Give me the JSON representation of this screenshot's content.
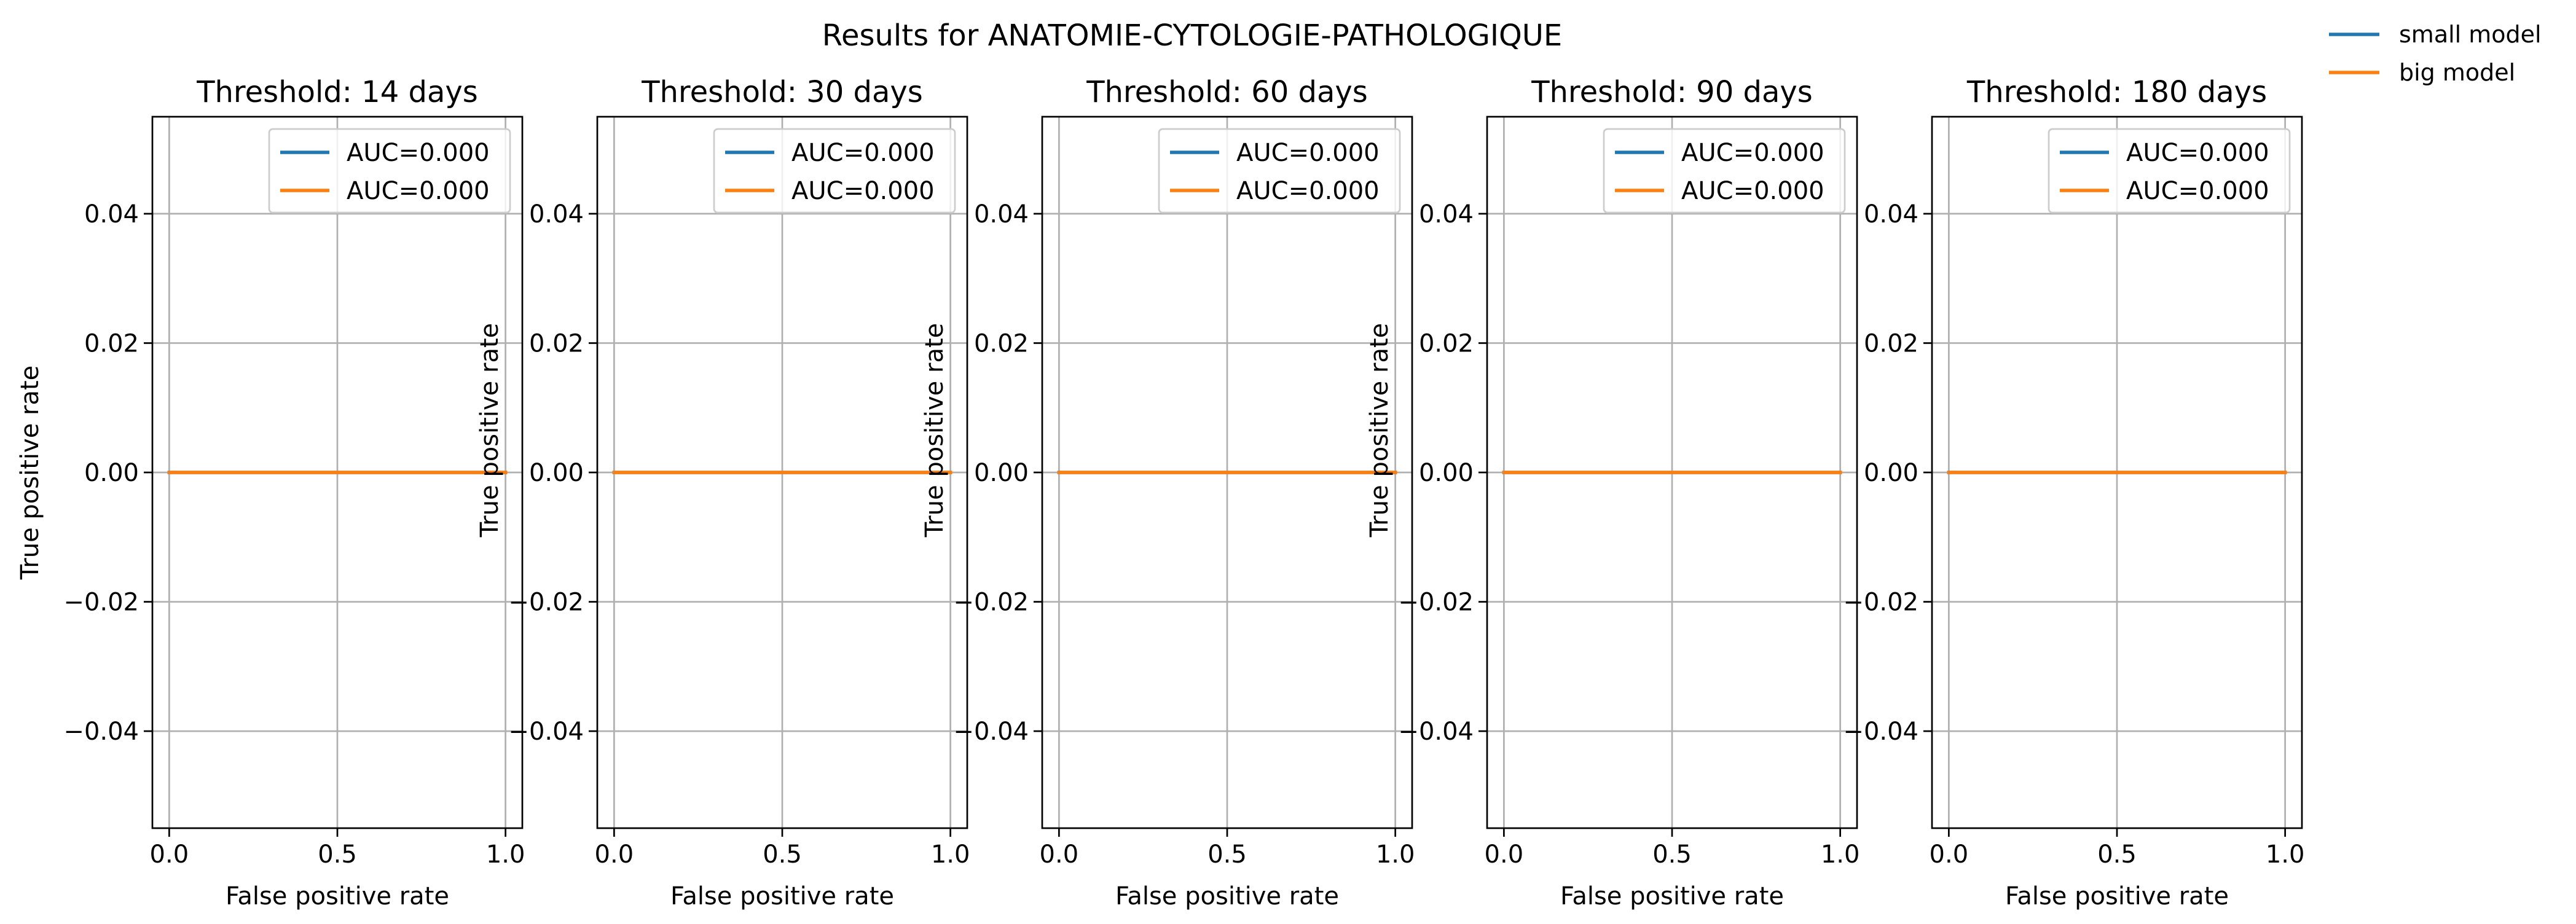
{
  "chart_data": {
    "type": "line",
    "title": "Results for ANATOMIE-CYTOLOGIE-PATHOLOGIQUE",
    "figure_legend": {
      "placement": "top-right",
      "entries": [
        {
          "name": "small model",
          "color": "#1f77b4"
        },
        {
          "name": "big model",
          "color": "#ff7f0e"
        }
      ]
    },
    "colors": {
      "small_model": "#1f77b4",
      "big_model": "#ff7f0e"
    },
    "xlim": [
      -0.05,
      1.05
    ],
    "ylim": [
      -0.055,
      0.055
    ],
    "xticks": [
      0.0,
      0.5,
      1.0
    ],
    "xtick_labels": [
      "0.0",
      "0.5",
      "1.0"
    ],
    "yticks": [
      -0.04,
      -0.02,
      0.0,
      0.02,
      0.04
    ],
    "ytick_labels": [
      "−0.04",
      "−0.02",
      "0.00",
      "0.02",
      "0.04"
    ],
    "grid": true,
    "panels": [
      {
        "title": "Threshold: 14 days",
        "xlabel": "False positive rate",
        "ylabel": "True positive rate",
        "legend_placement": "upper-right",
        "series": [
          {
            "label": "AUC=0.000",
            "color": "#1f77b4",
            "x": [
              0,
              1
            ],
            "y": [
              0,
              0
            ]
          },
          {
            "label": "AUC=0.000",
            "color": "#ff7f0e",
            "x": [
              0,
              1
            ],
            "y": [
              0,
              0
            ]
          }
        ]
      },
      {
        "title": "Threshold: 30 days",
        "xlabel": "False positive rate",
        "ylabel": "True positive rate",
        "legend_placement": "upper-right",
        "series": [
          {
            "label": "AUC=0.000",
            "color": "#1f77b4",
            "x": [
              0,
              1
            ],
            "y": [
              0,
              0
            ]
          },
          {
            "label": "AUC=0.000",
            "color": "#ff7f0e",
            "x": [
              0,
              1
            ],
            "y": [
              0,
              0
            ]
          }
        ]
      },
      {
        "title": "Threshold: 60 days",
        "xlabel": "False positive rate",
        "ylabel": "True positive rate",
        "legend_placement": "upper-right",
        "series": [
          {
            "label": "AUC=0.000",
            "color": "#1f77b4",
            "x": [
              0,
              1
            ],
            "y": [
              0,
              0
            ]
          },
          {
            "label": "AUC=0.000",
            "color": "#ff7f0e",
            "x": [
              0,
              1
            ],
            "y": [
              0,
              0
            ]
          }
        ]
      },
      {
        "title": "Threshold: 90 days",
        "xlabel": "False positive rate",
        "ylabel": "True positive rate",
        "legend_placement": "upper-right",
        "series": [
          {
            "label": "AUC=0.000",
            "color": "#1f77b4",
            "x": [
              0,
              1
            ],
            "y": [
              0,
              0
            ]
          },
          {
            "label": "AUC=0.000",
            "color": "#ff7f0e",
            "x": [
              0,
              1
            ],
            "y": [
              0,
              0
            ]
          }
        ]
      },
      {
        "title": "Threshold: 180 days",
        "xlabel": "False positive rate",
        "ylabel": "",
        "legend_placement": "upper-right",
        "series": [
          {
            "label": "AUC=0.000",
            "color": "#1f77b4",
            "x": [
              0,
              1
            ],
            "y": [
              0,
              0
            ]
          },
          {
            "label": "AUC=0.000",
            "color": "#ff7f0e",
            "x": [
              0,
              1
            ],
            "y": [
              0,
              0
            ]
          }
        ]
      }
    ]
  }
}
